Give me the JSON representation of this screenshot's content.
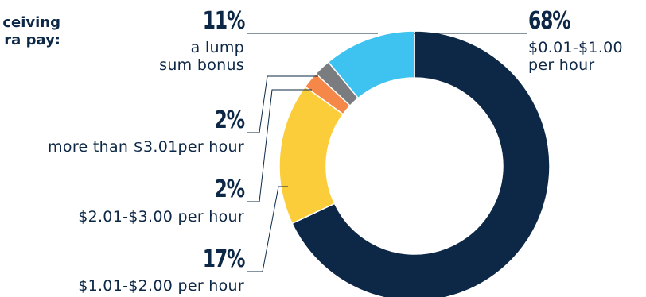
{
  "intro_text": [
    "ceiving",
    "ra pay:"
  ],
  "chart_data": {
    "type": "pie",
    "style": "donut",
    "slices": [
      {
        "label": "$0.01-$1.00 per hour",
        "label_lines": [
          "$0.01-$1.00",
          "per hour"
        ],
        "value": 68,
        "value_label": "68%",
        "color": "#0d2846"
      },
      {
        "label": "$1.01-$2.00 per hour",
        "label_lines": [
          "$1.01-$2.00 per hour"
        ],
        "value": 17,
        "value_label": "17%",
        "color": "#fbcd3a"
      },
      {
        "label": "$2.01-$3.00 per hour",
        "label_lines": [
          "$2.01-$3.00 per hour"
        ],
        "value": 2,
        "value_label": "2%",
        "color": "#f58848"
      },
      {
        "label": "more than $3.01per hour",
        "label_lines": [
          "more than $3.01per hour"
        ],
        "value": 2,
        "value_label": "2%",
        "color": "#7a7c80"
      },
      {
        "label": "a lump sum bonus",
        "label_lines": [
          "a lump",
          "sum bonus"
        ],
        "value": 11,
        "value_label": "11%",
        "color": "#3ec3f0"
      }
    ]
  }
}
